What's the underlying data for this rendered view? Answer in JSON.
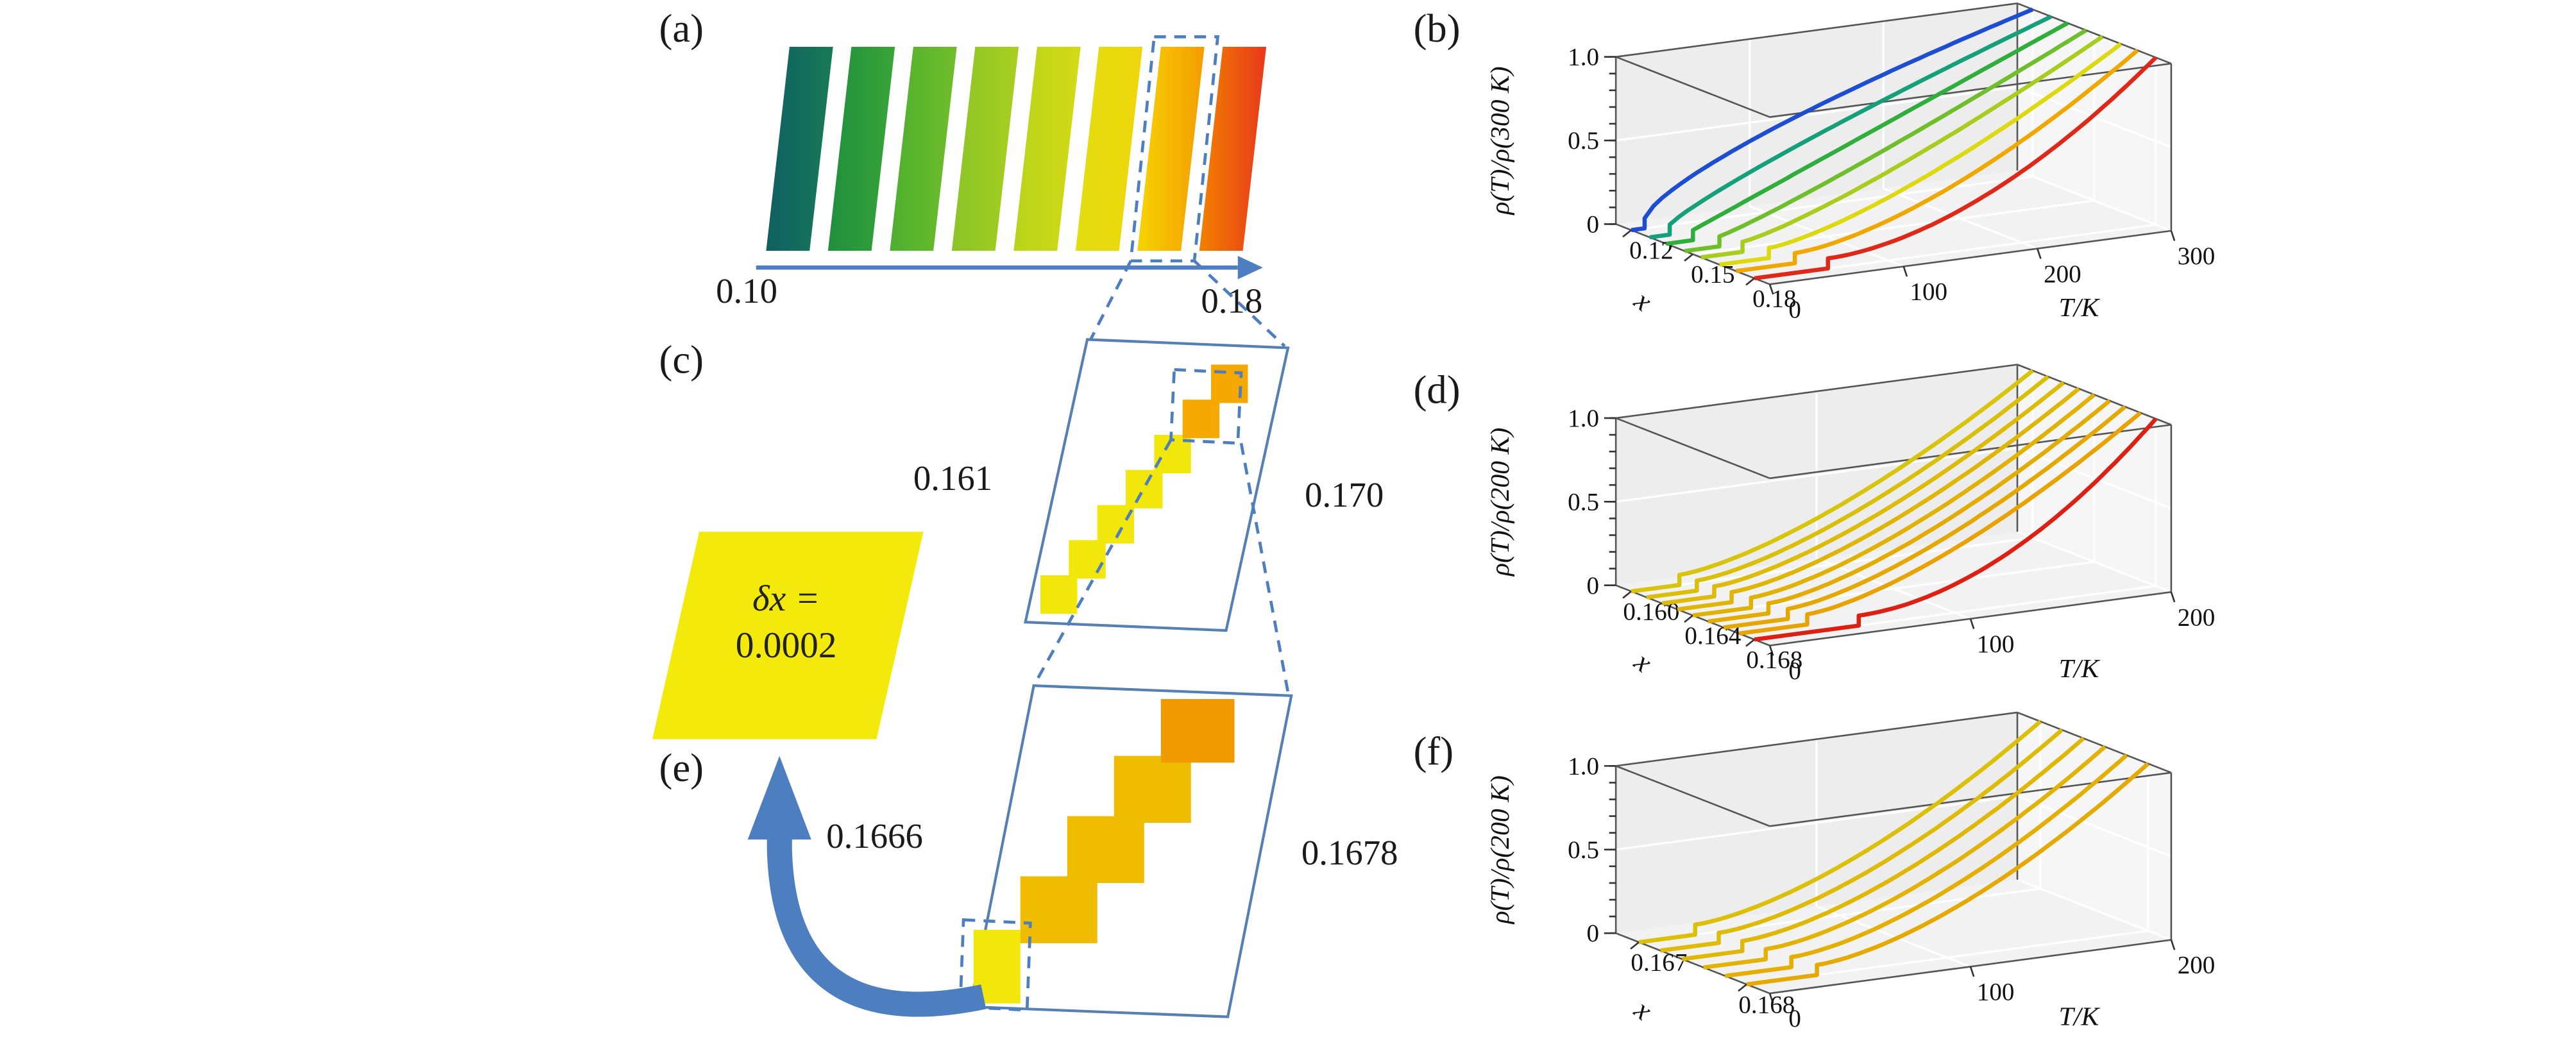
{
  "figure": {
    "background": "#ffffff",
    "colors": {
      "accent_blue": "#4d7fc0",
      "frame_blue": "#5580b3",
      "text": "#1a1a1a"
    }
  },
  "panels": {
    "a": {
      "label": "(a)",
      "axis_min": "0.10",
      "axis_max": "0.18",
      "highlight_index": 6,
      "bars": [
        {
          "from": "#0f5f62",
          "to": "#187a55"
        },
        {
          "from": "#1f8f3e",
          "to": "#39a437"
        },
        {
          "from": "#4daf2f",
          "to": "#72bd2a"
        },
        {
          "from": "#8bc427",
          "to": "#a8cf20"
        },
        {
          "from": "#b8d41c",
          "to": "#d3da15"
        },
        {
          "from": "#e2de11",
          "to": "#efd60b"
        },
        {
          "from": "#f6d303",
          "to": "#f59c00"
        },
        {
          "from": "#f28000",
          "to": "#e8391b"
        }
      ]
    },
    "c": {
      "label": "(c)",
      "left_value": "0.161",
      "right_value": "0.170",
      "step_color": "#f2e70a",
      "top_step_color": "#f5a800"
    },
    "e": {
      "label": "(e)",
      "left_value": "0.1666",
      "right_value": "0.1678",
      "step_color": "#efbc00",
      "top_step_color": "#f09a00",
      "highlight_step_color": "#f2e70a"
    },
    "delta": {
      "line1": "δx =",
      "line2": "0.0002",
      "fill": "#f3ea0b"
    }
  },
  "chart_data": [
    {
      "type": "line3d",
      "panel": "(b)",
      "zlabel": "ρ(T)/ρ(300 K)",
      "xlabel": "x",
      "tlabel": "T/K",
      "t_max": 300,
      "z_range": [
        0,
        1.0
      ],
      "jump": 0.06,
      "model": "z=0 for T<Tc; z=jump+(1-jump)*((T-Tc)/(Tmax-Tc))^p",
      "z_ticks": [
        {
          "label": "0",
          "pos": 0
        },
        {
          "label": "0.5",
          "pos": 0.5
        },
        {
          "label": "1.0",
          "pos": 1
        }
      ],
      "t_ticks": [
        {
          "label": "0",
          "pos": 0
        },
        {
          "label": "100",
          "pos": 0.3333
        },
        {
          "label": "200",
          "pos": 0.6667
        },
        {
          "label": "300",
          "pos": 1
        }
      ],
      "x_ticks": [
        {
          "label": "0.12",
          "pos": 0.1
        },
        {
          "label": "0.15",
          "pos": 0.5
        },
        {
          "label": "0.18",
          "pos": 0.9
        }
      ],
      "x_map": {
        "x_min": 0.12,
        "x_max": 0.18,
        "f_min": 0.1,
        "f_max": 0.9
      },
      "series": [
        {
          "x": 0.12,
          "color": "#1d4ed2",
          "tc_K": 10,
          "p": 0.7
        },
        {
          "x": 0.129,
          "color": "#13a07a",
          "tc_K": 15,
          "p": 0.85
        },
        {
          "x": 0.137,
          "color": "#2fae3c",
          "tc_K": 20,
          "p": 1.0
        },
        {
          "x": 0.146,
          "color": "#6fbe2b",
          "tc_K": 26,
          "p": 1.12
        },
        {
          "x": 0.154,
          "color": "#a9cd1f",
          "tc_K": 31,
          "p": 1.25
        },
        {
          "x": 0.163,
          "color": "#dcd90f",
          "tc_K": 37,
          "p": 1.4
        },
        {
          "x": 0.171,
          "color": "#f0a800",
          "tc_K": 44,
          "p": 1.58
        },
        {
          "x": 0.18,
          "color": "#e02818",
          "tc_K": 55,
          "p": 1.8
        }
      ]
    },
    {
      "type": "line3d",
      "panel": "(d)",
      "zlabel": "ρ(T)/ρ(200 K)",
      "xlabel": "x",
      "tlabel": "T/K",
      "t_max": 200,
      "z_range": [
        0,
        1.0
      ],
      "jump": 0.06,
      "model": "z=0 for T<Tc; z=jump+(1-jump)*((T-Tc)/(Tmax-Tc))^p",
      "z_ticks": [
        {
          "label": "0",
          "pos": 0
        },
        {
          "label": "0.5",
          "pos": 0.5
        },
        {
          "label": "1.0",
          "pos": 1
        }
      ],
      "t_ticks": [
        {
          "label": "0",
          "pos": 0
        },
        {
          "label": "100",
          "pos": 0.5
        },
        {
          "label": "200",
          "pos": 1
        }
      ],
      "x_ticks": [
        {
          "label": "0.160",
          "pos": 0.1
        },
        {
          "label": "0.164",
          "pos": 0.5
        },
        {
          "label": "0.168",
          "pos": 0.9
        }
      ],
      "x_map": {
        "x_min": 0.16,
        "x_max": 0.168,
        "f_min": 0.1,
        "f_max": 0.9
      },
      "series": [
        {
          "x": 0.16,
          "color": "#d8c40a",
          "tc_K": 24,
          "p": 1.5
        },
        {
          "x": 0.161,
          "color": "#dabf08",
          "tc_K": 25,
          "p": 1.5
        },
        {
          "x": 0.162,
          "color": "#ddbb07",
          "tc_K": 26,
          "p": 1.5
        },
        {
          "x": 0.163,
          "color": "#dfb605",
          "tc_K": 27,
          "p": 1.5
        },
        {
          "x": 0.164,
          "color": "#e1b104",
          "tc_K": 29,
          "p": 1.5
        },
        {
          "x": 0.165,
          "color": "#e3ac03",
          "tc_K": 30,
          "p": 1.5
        },
        {
          "x": 0.166,
          "color": "#e5a702",
          "tc_K": 32,
          "p": 1.5
        },
        {
          "x": 0.167,
          "color": "#e8a201",
          "tc_K": 34,
          "p": 1.5
        },
        {
          "x": 0.168,
          "color": "#de2012",
          "tc_K": 52,
          "p": 1.9
        }
      ]
    },
    {
      "type": "line3d",
      "panel": "(f)",
      "zlabel": "ρ(T)/ρ(200 K)",
      "xlabel": "x",
      "tlabel": "T/K",
      "t_max": 200,
      "z_range": [
        0,
        1.0
      ],
      "jump": 0.06,
      "model": "z=0 for T<Tc; z=jump+(1-jump)*((T-Tc)/(Tmax-Tc))^p",
      "z_ticks": [
        {
          "label": "0",
          "pos": 0
        },
        {
          "label": "0.5",
          "pos": 0.5
        },
        {
          "label": "1.0",
          "pos": 1
        }
      ],
      "t_ticks": [
        {
          "label": "0",
          "pos": 0
        },
        {
          "label": "100",
          "pos": 0.5
        },
        {
          "label": "200",
          "pos": 1
        }
      ],
      "x_ticks": [
        {
          "label": "0.167",
          "pos": 0.15
        },
        {
          "label": "0.168",
          "pos": 0.85
        }
      ],
      "x_map": {
        "x_min": 0.167,
        "x_max": 0.168,
        "f_min": 0.15,
        "f_max": 0.85
      },
      "series": [
        {
          "x": 0.167,
          "color": "#dcc007",
          "tc_K": 28,
          "p": 1.6
        },
        {
          "x": 0.1672,
          "color": "#debb06",
          "tc_K": 29,
          "p": 1.6
        },
        {
          "x": 0.1674,
          "color": "#e0b705",
          "tc_K": 30,
          "p": 1.6
        },
        {
          "x": 0.1676,
          "color": "#e2b204",
          "tc_K": 31,
          "p": 1.6
        },
        {
          "x": 0.1678,
          "color": "#e4ae03",
          "tc_K": 33,
          "p": 1.6
        },
        {
          "x": 0.168,
          "color": "#e6a902",
          "tc_K": 35,
          "p": 1.6
        }
      ]
    }
  ]
}
